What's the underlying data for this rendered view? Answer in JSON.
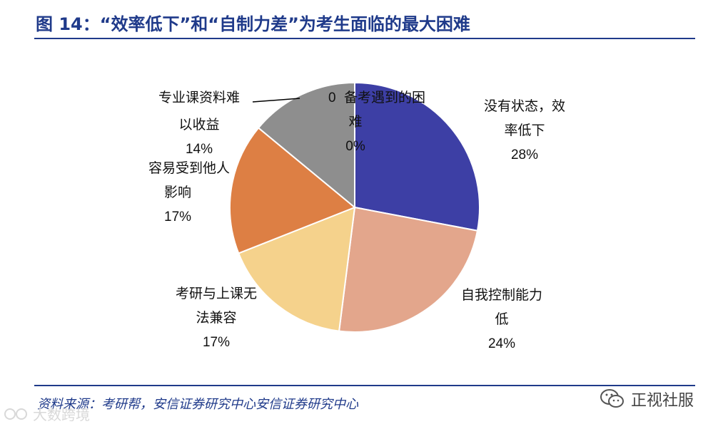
{
  "title": "图 14：“效率低下”和“自制力差”为考生面临的最大困难",
  "source": "资料来源：考研帮，安信证券研究中心安信证券研究中心",
  "watermark_bottom_right": "正视社服",
  "watermark_bottom_left": "大数跨境",
  "chart_data": {
    "type": "pie",
    "categories": [
      "备考遇到的困难",
      "没有状态，效率低下",
      "自我控制能力低",
      "考研与上课无法兼容",
      "容易受到他人影响",
      "专业课资料难以收益"
    ],
    "values": [
      0,
      28,
      24,
      17,
      17,
      14
    ],
    "colors": [
      "#3d3fa5",
      "#3d3fa5",
      "#e3a68c",
      "#f5d28c",
      "#dd7f44",
      "#8e8e8e"
    ],
    "labels": [
      {
        "lines": [
          "0",
          "备考遇到的困",
          "难",
          "0%"
        ]
      },
      {
        "lines": [
          "没有状态，效",
          "率低下",
          "28%"
        ]
      },
      {
        "lines": [
          "自我控制能力",
          "低",
          "24%"
        ]
      },
      {
        "lines": [
          "考研与上课无",
          "法兼容",
          "17%"
        ]
      },
      {
        "lines": [
          "容易受到他人",
          "影响",
          "17%"
        ]
      },
      {
        "lines": [
          "专业课资料难",
          "以收益",
          "14%"
        ]
      }
    ]
  }
}
